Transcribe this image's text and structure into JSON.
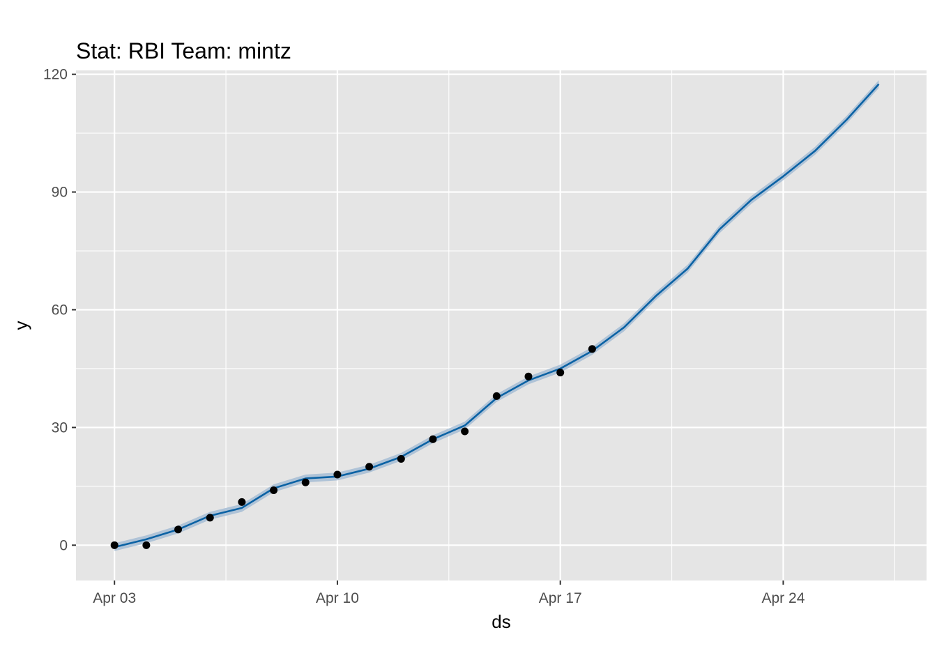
{
  "chart_data": {
    "type": "line",
    "title": "Stat: RBI Team: mintz",
    "xlabel": "ds",
    "ylabel": "y",
    "x_axis_type": "date",
    "x_range": [
      "2023-04-01 19:00",
      "2023-04-28 12:00"
    ],
    "ylim": [
      -9,
      121
    ],
    "x_ticks": [
      {
        "date": "2023-04-03",
        "label": "Apr 03"
      },
      {
        "date": "2023-04-10",
        "label": "Apr 10"
      },
      {
        "date": "2023-04-17",
        "label": "Apr 17"
      },
      {
        "date": "2023-04-24",
        "label": "Apr 24"
      }
    ],
    "x_minor_ticks": [
      "2023-04-06 12:00",
      "2023-04-13 12:00",
      "2023-04-20 12:00",
      "2023-04-27 12:00"
    ],
    "y_ticks": [
      0,
      30,
      60,
      90,
      120
    ],
    "y_minor_ticks": [
      15,
      45,
      75,
      105
    ],
    "grid": true,
    "legend": "none",
    "colors": {
      "panel_background": "#e5e5e5",
      "grid_line": "#ffffff",
      "forecast_line": "#0b62a4",
      "uncertainty_band": "#9cb7d1",
      "observed_point": "#000000"
    },
    "series": [
      {
        "kind": "points",
        "x": [
          "2023-04-03",
          "2023-04-04",
          "2023-04-05",
          "2023-04-06",
          "2023-04-07",
          "2023-04-08",
          "2023-04-09",
          "2023-04-10",
          "2023-04-11",
          "2023-04-12",
          "2023-04-13",
          "2023-04-14",
          "2023-04-15",
          "2023-04-16",
          "2023-04-17",
          "2023-04-18"
        ],
        "y": [
          0,
          0,
          4,
          7,
          11,
          14,
          16,
          18,
          20,
          22,
          27,
          29,
          38,
          43,
          44,
          50
        ]
      },
      {
        "kind": "line",
        "x": [
          "2023-04-03",
          "2023-04-04",
          "2023-04-05",
          "2023-04-06",
          "2023-04-07",
          "2023-04-08",
          "2023-04-09",
          "2023-04-10",
          "2023-04-11",
          "2023-04-12",
          "2023-04-13",
          "2023-04-14",
          "2023-04-15",
          "2023-04-16",
          "2023-04-17",
          "2023-04-18",
          "2023-04-19",
          "2023-04-20",
          "2023-04-21",
          "2023-04-22",
          "2023-04-23",
          "2023-04-24",
          "2023-04-25",
          "2023-04-26",
          "2023-04-27"
        ],
        "y": [
          -0.5,
          1.5,
          4,
          7.5,
          9.5,
          14.5,
          17,
          17.5,
          19.5,
          22.5,
          27,
          30.5,
          37.5,
          42,
          45,
          49.5,
          55.5,
          63.5,
          70.5,
          80.5,
          88,
          94,
          100.5,
          108.5,
          117.5
        ],
        "lower": [
          -1.5,
          0.5,
          3,
          6.5,
          8.5,
          13.5,
          16,
          16.5,
          18.5,
          21.5,
          26,
          29.5,
          36.5,
          41,
          44,
          48.5,
          54.5,
          62.5,
          69.5,
          79.5,
          87,
          93,
          99.5,
          107.5,
          116.5
        ],
        "upper": [
          0.5,
          2.5,
          5,
          8.5,
          10.5,
          15.5,
          18,
          18.5,
          20.5,
          23.5,
          28,
          31.5,
          38.5,
          43,
          46,
          50.5,
          56.5,
          64.5,
          71.5,
          81.5,
          89,
          95,
          101.5,
          109.5,
          118.5
        ]
      }
    ]
  }
}
